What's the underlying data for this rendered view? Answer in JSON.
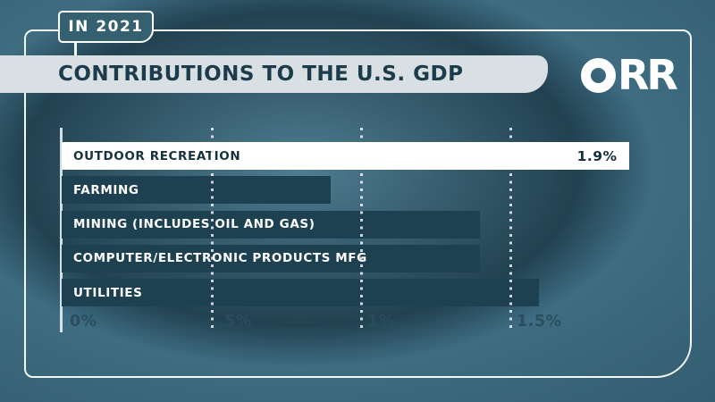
{
  "badge": {
    "label": "IN 2021"
  },
  "header": {
    "title": "CONTRIBUTIONS TO THE U.S. GDP",
    "logo_text": "ORR"
  },
  "chart_data": {
    "type": "bar",
    "orientation": "horizontal",
    "title": "CONTRIBUTIONS TO THE U.S. GDP",
    "subtitle": "IN 2021",
    "categories": [
      "OUTDOOR RECREATION",
      "FARMING",
      "MINING (INCLUDES OIL AND GAS)",
      "COMPUTER/ELECTRONIC PRODUCTS MFG",
      "UTILITIES"
    ],
    "values": [
      1.9,
      0.9,
      1.4,
      1.4,
      1.6
    ],
    "unit": "%",
    "value_labels": [
      "1.9%",
      "",
      "",
      "",
      ""
    ],
    "highlight_index": 0,
    "x_ticks": [
      {
        "label": "0%",
        "value": 0
      },
      {
        "label": ".5%",
        "value": 0.5
      },
      {
        "label": "1%",
        "value": 1
      },
      {
        "label": "1.5%",
        "value": 1.5
      }
    ],
    "xlim": [
      0,
      2.1
    ],
    "grid": "dotted vertical gridlines at 0.5% intervals, drawn over bars",
    "legend": "none"
  },
  "colors": {
    "background_center": "#4f7d91",
    "background_edge": "#294c5d",
    "bar": "#1e4152",
    "highlight_bar": "#ffffff",
    "banner_bg": "#d8e0e3",
    "dark_text": "#1c3c4c",
    "frame_line": "#f2f7f8",
    "axis_label": "#2b4d5e"
  }
}
